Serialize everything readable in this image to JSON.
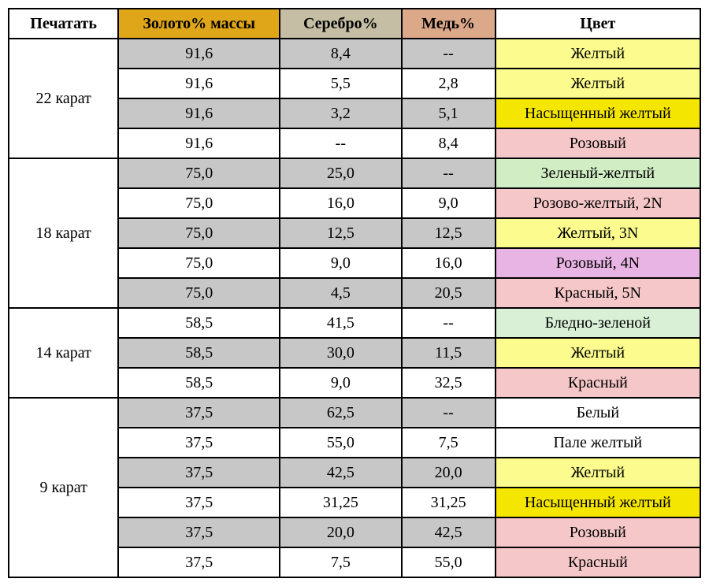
{
  "colors": {
    "header_print": "#ffffff",
    "header_gold": "#e0a619",
    "header_silver": "#c6bea4",
    "header_copper": "#dca88a",
    "header_color": "#ffffff",
    "row_grey": "#c7c7c7",
    "row_white": "#ffffff",
    "cell_yellow_light": "#fbfc8d",
    "cell_yellow_sat": "#f5e600",
    "cell_pink": "#f6c7c8",
    "cell_green_light": "#d0edc4",
    "cell_pink_yellow": "#f6c7c8",
    "cell_violet": "#e8b4e3",
    "cell_white": "#ffffff",
    "cell_pale_green": "#d9f0d7"
  },
  "headers": {
    "print": "Печатать",
    "gold": "Золото% массы",
    "silver": "Серебро%",
    "copper": "Медь%",
    "color": "Цвет"
  },
  "groups": [
    {
      "label": "22 карат",
      "rows": [
        {
          "bg": "row_grey",
          "gold": "91,6",
          "silver": "8,4",
          "copper": "--",
          "color_label": "Желтый",
          "color_bg": "cell_yellow_light"
        },
        {
          "bg": "row_white",
          "gold": "91,6",
          "silver": "5,5",
          "copper": "2,8",
          "color_label": "Желтый",
          "color_bg": "cell_yellow_light"
        },
        {
          "bg": "row_grey",
          "gold": "91,6",
          "silver": "3,2",
          "copper": "5,1",
          "color_label": "Насыщенный желтый",
          "color_bg": "cell_yellow_sat"
        },
        {
          "bg": "row_white",
          "gold": "91,6",
          "silver": "--",
          "copper": "8,4",
          "color_label": "Розовый",
          "color_bg": "cell_pink"
        }
      ]
    },
    {
      "label": "18 карат",
      "rows": [
        {
          "bg": "row_grey",
          "gold": "75,0",
          "silver": "25,0",
          "copper": "--",
          "color_label": "Зеленый-желтый",
          "color_bg": "cell_green_light"
        },
        {
          "bg": "row_white",
          "gold": "75,0",
          "silver": "16,0",
          "copper": "9,0",
          "color_label": "Розово-желтый, 2N",
          "color_bg": "cell_pink_yellow"
        },
        {
          "bg": "row_grey",
          "gold": "75,0",
          "silver": "12,5",
          "copper": "12,5",
          "color_label": "Желтый, 3N",
          "color_bg": "cell_yellow_light"
        },
        {
          "bg": "row_white",
          "gold": "75,0",
          "silver": "9,0",
          "copper": "16,0",
          "color_label": "Розовый, 4N",
          "color_bg": "cell_violet"
        },
        {
          "bg": "row_grey",
          "gold": "75,0",
          "silver": "4,5",
          "copper": "20,5",
          "color_label": "Красный, 5N",
          "color_bg": "cell_pink"
        }
      ]
    },
    {
      "label": "14 карат",
      "rows": [
        {
          "bg": "row_white",
          "gold": "58,5",
          "silver": "41,5",
          "copper": "--",
          "color_label": "Бледно-зеленой",
          "color_bg": "cell_pale_green"
        },
        {
          "bg": "row_grey",
          "gold": "58,5",
          "silver": "30,0",
          "copper": "11,5",
          "color_label": "Желтый",
          "color_bg": "cell_yellow_light"
        },
        {
          "bg": "row_white",
          "gold": "58,5",
          "silver": "9,0",
          "copper": "32,5",
          "color_label": "Красный",
          "color_bg": "cell_pink"
        }
      ]
    },
    {
      "label": "9 карат",
      "rows": [
        {
          "bg": "row_grey",
          "gold": "37,5",
          "silver": "62,5",
          "copper": "--",
          "color_label": "Белый",
          "color_bg": "cell_white"
        },
        {
          "bg": "row_white",
          "gold": "37,5",
          "silver": "55,0",
          "copper": "7,5",
          "color_label": "Пале желтый",
          "color_bg": "cell_white"
        },
        {
          "bg": "row_grey",
          "gold": "37,5",
          "silver": "42,5",
          "copper": "20,0",
          "color_label": "Желтый",
          "color_bg": "cell_yellow_light"
        },
        {
          "bg": "row_white",
          "gold": "37,5",
          "silver": "31,25",
          "copper": "31,25",
          "color_label": "Насыщенный желтый",
          "color_bg": "cell_yellow_sat"
        },
        {
          "bg": "row_grey",
          "gold": "37,5",
          "silver": "20,0",
          "copper": "42,5",
          "color_label": "Розовый",
          "color_bg": "cell_pink"
        },
        {
          "bg": "row_white",
          "gold": "37,5",
          "silver": "7,5",
          "copper": "55,0",
          "color_label": "Красный",
          "color_bg": "cell_pink"
        }
      ]
    }
  ]
}
